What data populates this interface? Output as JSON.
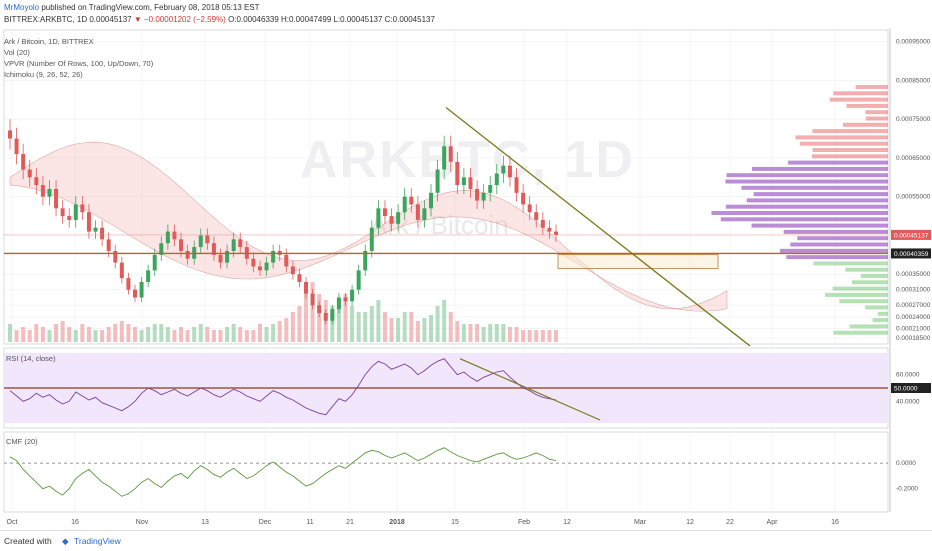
{
  "header": {
    "user": "MrMoyolo",
    "published": "published on TradingView.com, February 08, 2018 05:13 EST",
    "symbol_line_1": "BITTREX:ARKBTC, 1D  0.00045137",
    "change": "▼ −0.00001202 (−2.59%)",
    "ohlc": "O:0.00046339  H:0.00047499  L:0.00045137  C:0.00045137"
  },
  "legend": {
    "pair": "Ark / Bitcoin, 1D, BITTREX",
    "vol": "Vol (20)",
    "vpvr": "VPVR (Number Of Rows, 100, Up/Down, 70)",
    "ichimoku": "Ichimoku (9, 26, 52, 26)",
    "rsi": "RSI (14, close)",
    "cmf": "CMF (20)"
  },
  "watermark": {
    "main": "ARKBTC, 1D",
    "sub": "Ark / Bitcoin"
  },
  "footer": {
    "created": "Created with",
    "brand": "TradingView"
  },
  "colors": {
    "up": "#3ba55d",
    "down": "#e05a5a",
    "trend": "#7a7a1a",
    "support": "#b5651d",
    "rsi_fill": "#f1e6fb",
    "cmf": "#5a9a3c"
  },
  "chart_data": [
    {
      "type": "candlestick",
      "title": "Ark / Bitcoin, 1D, BITTREX",
      "y_tick_labels": [
        "0.00095000",
        "0.00085000",
        "0.00075000",
        "0.00065000",
        "0.00055000",
        "0.00045137",
        "0.00040359",
        "0.00035000",
        "0.00031000",
        "0.00027000",
        "0.00024000",
        "0.00021000",
        "0.00018500"
      ],
      "x_tick_labels": [
        "Oct",
        "16",
        "Nov",
        "13",
        "Dec",
        "11",
        "21",
        "2018",
        "15",
        "Feb",
        "12",
        "Mar",
        "12",
        "22",
        "Apr",
        "16"
      ],
      "last_price": 0.00045137,
      "support_level": 0.00040359,
      "close": [
        0.0007,
        0.00066,
        0.00062,
        0.0006,
        0.00058,
        0.00055,
        0.00057,
        0.00052,
        0.0005,
        0.00049,
        0.00053,
        0.00051,
        0.00046,
        0.00047,
        0.00044,
        0.00041,
        0.00038,
        0.00034,
        0.00031,
        0.00029,
        0.00033,
        0.00036,
        0.0004,
        0.00043,
        0.00046,
        0.00044,
        0.00041,
        0.00039,
        0.00042,
        0.00045,
        0.00043,
        0.0004,
        0.00038,
        0.00041,
        0.00044,
        0.00042,
        0.00039,
        0.00037,
        0.00036,
        0.00038,
        0.00041,
        0.0004,
        0.00037,
        0.00035,
        0.00033,
        0.0003,
        0.00027,
        0.00025,
        0.00023,
        0.00026,
        0.00029,
        0.00028,
        0.00031,
        0.00036,
        0.00041,
        0.00047,
        0.00052,
        0.0005,
        0.00048,
        0.00051,
        0.00055,
        0.00053,
        0.00049,
        0.00052,
        0.00056,
        0.00062,
        0.00068,
        0.00064,
        0.00058,
        0.0006,
        0.00057,
        0.00054,
        0.00056,
        0.00058,
        0.00061,
        0.00063,
        0.0006,
        0.00056,
        0.00053,
        0.00051,
        0.00049,
        0.00047,
        0.00046,
        0.00045137
      ],
      "volume_relative": [
        0.3,
        0.2,
        0.25,
        0.2,
        0.3,
        0.25,
        0.2,
        0.3,
        0.35,
        0.25,
        0.2,
        0.3,
        0.25,
        0.2,
        0.2,
        0.25,
        0.3,
        0.35,
        0.3,
        0.25,
        0.2,
        0.25,
        0.3,
        0.3,
        0.25,
        0.2,
        0.25,
        0.2,
        0.25,
        0.3,
        0.25,
        0.2,
        0.2,
        0.25,
        0.3,
        0.25,
        0.2,
        0.2,
        0.3,
        0.25,
        0.3,
        0.35,
        0.4,
        0.5,
        0.6,
        0.9,
        1.0,
        0.8,
        0.7,
        0.6,
        0.7,
        0.8,
        0.6,
        0.5,
        0.5,
        0.6,
        0.7,
        0.5,
        0.4,
        0.4,
        0.5,
        0.5,
        0.35,
        0.4,
        0.45,
        0.6,
        0.7,
        0.5,
        0.35,
        0.3,
        0.3,
        0.3,
        0.25,
        0.3,
        0.3,
        0.3,
        0.25,
        0.25,
        0.2,
        0.2,
        0.2,
        0.2,
        0.2,
        0.2
      ]
    },
    {
      "type": "line",
      "title": "RSI (14, close)",
      "y_tick_labels": [
        "60.0000",
        "50.0000",
        "40.0000"
      ],
      "reference_level": 50,
      "values": [
        48,
        44,
        40,
        42,
        46,
        43,
        45,
        41,
        38,
        40,
        47,
        44,
        41,
        43,
        39,
        37,
        35,
        33,
        36,
        40,
        46,
        50,
        48,
        45,
        47,
        49,
        46,
        44,
        47,
        50,
        48,
        45,
        43,
        46,
        49,
        47,
        44,
        42,
        40,
        44,
        48,
        46,
        43,
        41,
        38,
        35,
        33,
        31,
        30,
        36,
        42,
        40,
        45,
        52,
        60,
        66,
        70,
        68,
        64,
        66,
        68,
        65,
        60,
        63,
        67,
        70,
        72,
        66,
        60,
        62,
        58,
        55,
        58,
        60,
        62,
        63,
        58,
        54,
        50,
        48,
        45,
        43,
        42,
        41
      ]
    },
    {
      "type": "line",
      "title": "CMF (20)",
      "y_tick_labels": [
        "0.0000",
        "-0.2000"
      ],
      "reference_level": 0,
      "values": [
        0.05,
        0.02,
        -0.05,
        -0.1,
        -0.15,
        -0.2,
        -0.18,
        -0.22,
        -0.25,
        -0.2,
        -0.12,
        -0.08,
        -0.05,
        -0.1,
        -0.15,
        -0.18,
        -0.22,
        -0.26,
        -0.24,
        -0.2,
        -0.15,
        -0.12,
        -0.16,
        -0.19,
        -0.14,
        -0.1,
        -0.08,
        -0.12,
        -0.06,
        -0.02,
        -0.05,
        -0.09,
        -0.11,
        -0.07,
        -0.04,
        -0.08,
        -0.12,
        -0.1,
        -0.06,
        -0.02,
        0.01,
        -0.03,
        -0.07,
        -0.1,
        -0.14,
        -0.18,
        -0.16,
        -0.12,
        -0.08,
        -0.05,
        -0.02,
        -0.04,
        0.0,
        0.04,
        0.08,
        0.1,
        0.09,
        0.06,
        0.04,
        0.06,
        0.08,
        0.05,
        0.02,
        0.04,
        0.07,
        0.1,
        0.12,
        0.09,
        0.06,
        0.04,
        0.02,
        0.01,
        0.03,
        0.05,
        0.07,
        0.08,
        0.05,
        0.03,
        0.04,
        0.06,
        0.08,
        0.06,
        0.03,
        0.02
      ]
    }
  ]
}
